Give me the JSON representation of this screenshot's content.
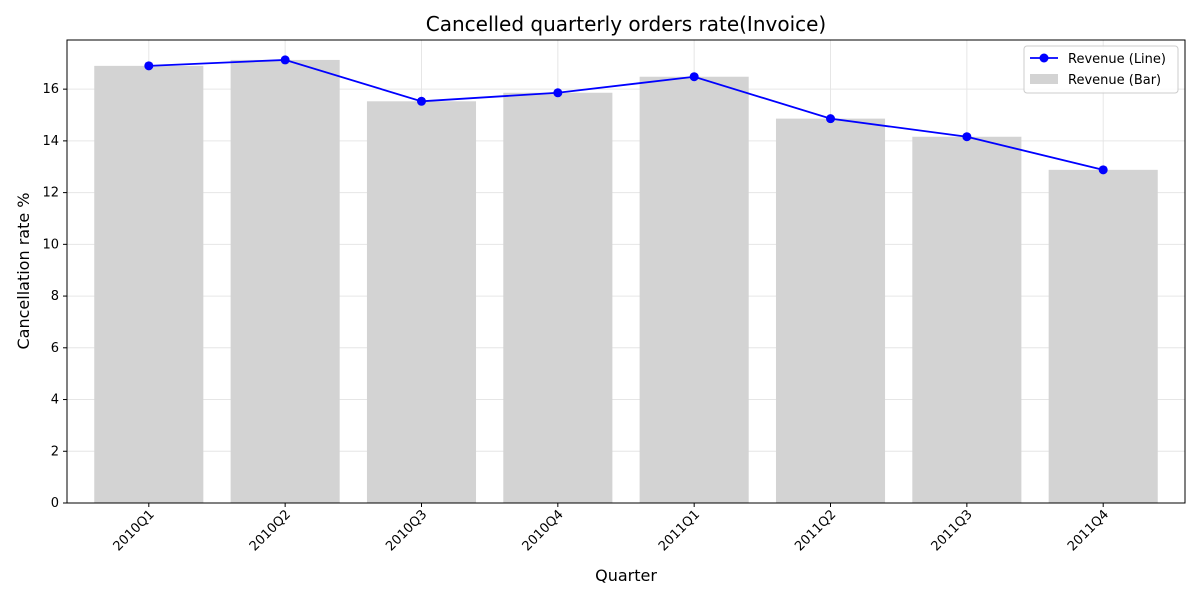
{
  "chart_data": {
    "type": "bar",
    "title": "Cancelled quarterly orders rate(Invoice)",
    "xlabel": "Quarter",
    "ylabel": "Cancellation rate %",
    "categories": [
      "2010Q1",
      "2010Q2",
      "2010Q3",
      "2010Q4",
      "2011Q1",
      "2011Q2",
      "2011Q3",
      "2011Q4"
    ],
    "ylim": [
      0,
      17.9
    ],
    "yticks": [
      0,
      2,
      4,
      6,
      8,
      10,
      12,
      14,
      16
    ],
    "grid": true,
    "legend_position": "top-right",
    "series": [
      {
        "name": "Revenue (Line)",
        "kind": "line",
        "color": "#0000ff",
        "marker": "circle",
        "values": [
          16.9,
          17.13,
          15.53,
          15.86,
          16.48,
          14.86,
          14.16,
          12.88
        ]
      },
      {
        "name": "Revenue (Bar)",
        "kind": "bar",
        "color": "#d3d3d3",
        "values": [
          16.9,
          17.13,
          15.53,
          15.86,
          16.48,
          14.86,
          14.16,
          12.88
        ]
      }
    ]
  }
}
